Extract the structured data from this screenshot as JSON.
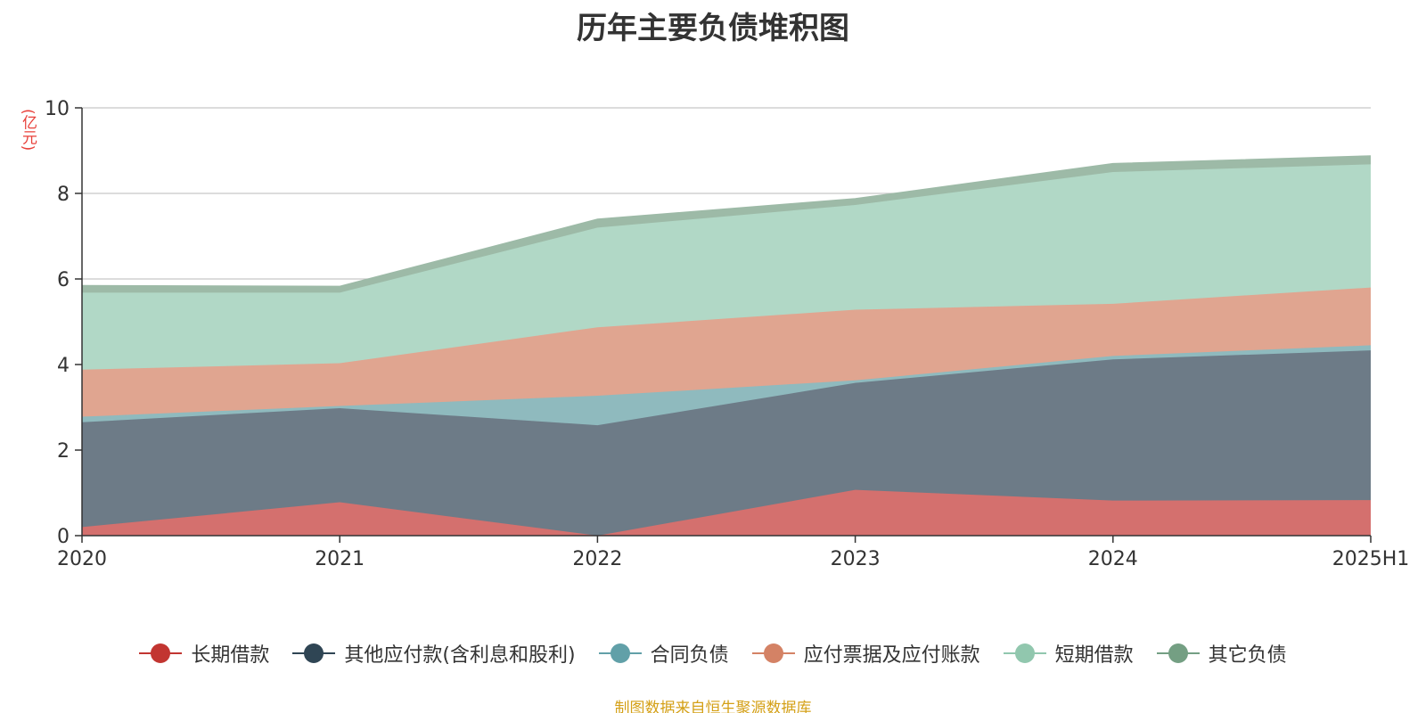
{
  "chart_data": {
    "type": "area",
    "stacked": true,
    "title": "历年主要负债堆积图",
    "ylabel": "(亿元)",
    "xlabel": "",
    "categories": [
      "2020",
      "2021",
      "2022",
      "2023",
      "2024",
      "2025H1"
    ],
    "ylim": [
      0,
      10
    ],
    "yticks": [
      0,
      2,
      4,
      6,
      8,
      10
    ],
    "grid": true,
    "legend_position": "bottom",
    "series": [
      {
        "name": "长期借款",
        "color": "#c23531",
        "fill": "#d4706e",
        "values": [
          0.2,
          0.78,
          0.0,
          1.07,
          0.82,
          0.83
        ]
      },
      {
        "name": "其他应付款(含利息和股利)",
        "color": "#2f4554",
        "fill": "#6d7b87",
        "values": [
          2.45,
          2.2,
          2.58,
          2.5,
          3.3,
          3.5
        ]
      },
      {
        "name": "合同负债",
        "color": "#61a0a8",
        "fill": "#8fbabe",
        "values": [
          0.13,
          0.05,
          0.69,
          0.06,
          0.08,
          0.12
        ]
      },
      {
        "name": "应付票据及应付账款",
        "color": "#d48265",
        "fill": "#e0a590",
        "values": [
          1.1,
          1.0,
          1.6,
          1.65,
          1.22,
          1.35
        ]
      },
      {
        "name": "短期借款",
        "color": "#91c7ae",
        "fill": "#b1d8c6",
        "values": [
          1.8,
          1.65,
          2.33,
          2.45,
          3.08,
          2.88
        ]
      },
      {
        "name": "其它负债",
        "color": "#749f83",
        "fill": "#9dba a7",
        "values": [
          0.17,
          0.15,
          0.2,
          0.15,
          0.2,
          0.2
        ]
      }
    ],
    "source": "制图数据来自恒生聚源数据库"
  }
}
